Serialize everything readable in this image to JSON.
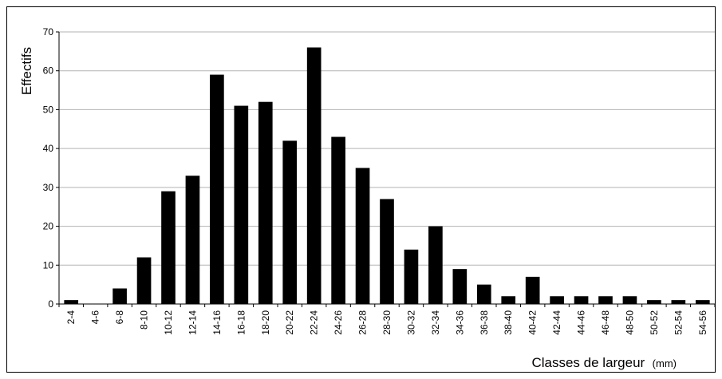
{
  "chart_data": {
    "type": "bar",
    "title": "",
    "xlabel": "Classes de largeur",
    "xlabel_unit": "(mm)",
    "ylabel": "Effectifs",
    "ylim": [
      0,
      70
    ],
    "yticks": [
      "0",
      "10",
      "20",
      "30",
      "40",
      "50",
      "60",
      "70"
    ],
    "grid": "horizontal",
    "legend": "none",
    "bar_color": "#000000",
    "grid_color": "#b3b3b3",
    "categories": [
      "2-4",
      "4-6",
      "6-8",
      "8-10",
      "10-12",
      "12-14",
      "14-16",
      "16-18",
      "18-20",
      "20-22",
      "22-24",
      "24-26",
      "26-28",
      "28-30",
      "30-32",
      "32-34",
      "34-36",
      "36-38",
      "38-40",
      "40-42",
      "42-44",
      "44-46",
      "46-48",
      "48-50",
      "50-52",
      "52-54",
      "54-56"
    ],
    "values": [
      1,
      0,
      4,
      12,
      29,
      33,
      59,
      51,
      52,
      42,
      66,
      43,
      35,
      27,
      14,
      20,
      9,
      5,
      2,
      7,
      2,
      2,
      2,
      2,
      1,
      1,
      1
    ]
  }
}
